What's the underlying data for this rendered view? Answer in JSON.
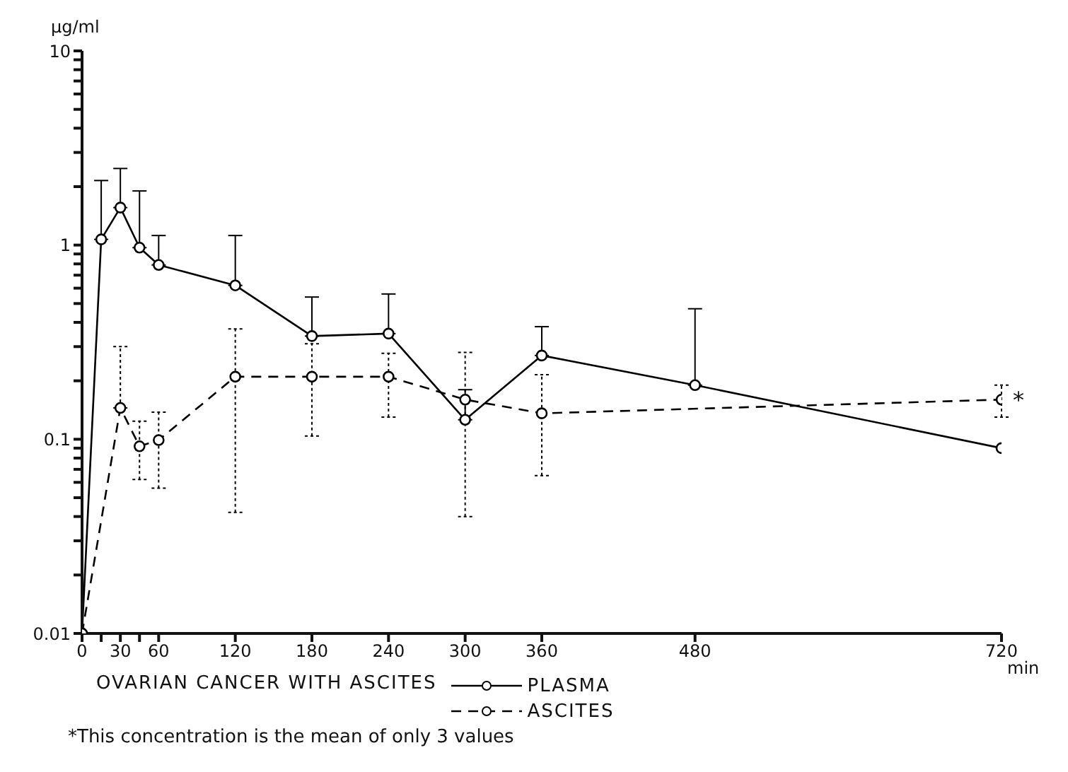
{
  "chart_data": {
    "type": "line",
    "ylabel": "μg/ml",
    "xlabel": "min",
    "legend_title": "OVARIAN CANCER WITH ASCITES",
    "legend": "bottom",
    "log": "y",
    "marker": "circle",
    "grid": false,
    "xlim": [
      0,
      720
    ],
    "xticks": [
      0,
      {
        "value": 15,
        "label": null
      },
      30,
      {
        "value": 45,
        "label": null
      },
      60,
      120,
      180,
      240,
      300,
      360,
      480,
      720
    ],
    "ylim": [
      0.01,
      10
    ],
    "yticks": [
      0.01,
      {
        "value": 0.02,
        "label": null
      },
      {
        "value": 0.03,
        "label": null
      },
      {
        "value": 0.04,
        "label": null
      },
      {
        "value": 0.05,
        "label": null
      },
      {
        "value": 0.06,
        "label": null
      },
      {
        "value": 0.07,
        "label": null
      },
      {
        "value": 0.08,
        "label": null
      },
      {
        "value": 0.09,
        "label": null
      },
      0.1,
      {
        "value": 0.2,
        "label": null
      },
      {
        "value": 0.3,
        "label": null
      },
      {
        "value": 0.4,
        "label": null
      },
      {
        "value": 0.5,
        "label": null
      },
      {
        "value": 0.6,
        "label": null
      },
      {
        "value": 0.7,
        "label": null
      },
      {
        "value": 0.8,
        "label": null
      },
      {
        "value": 0.9,
        "label": null
      },
      1,
      {
        "value": 2,
        "label": null
      },
      {
        "value": 3,
        "label": null
      },
      {
        "value": 4,
        "label": null
      },
      {
        "value": 5,
        "label": null
      },
      {
        "value": 6,
        "label": null
      },
      {
        "value": 7,
        "label": null
      },
      {
        "value": 8,
        "label": null
      },
      {
        "value": 9,
        "label": null
      },
      10
    ],
    "series": [
      {
        "name": "PLASMA",
        "color": "#000000",
        "line_style": "solid",
        "x": [
          0,
          15,
          30,
          45,
          60,
          120,
          180,
          240,
          300,
          360,
          480,
          720
        ],
        "values": [
          0.01,
          1.07,
          1.56,
          0.97,
          0.79,
          0.62,
          0.34,
          0.35,
          0.126,
          0.27,
          0.19,
          0.09
        ],
        "errors": [
          null,
          [
            1.07,
            2.15
          ],
          [
            1.56,
            2.48
          ],
          [
            0.97,
            1.9
          ],
          [
            0.79,
            1.12
          ],
          [
            0.62,
            1.12
          ],
          [
            0.34,
            0.54
          ],
          [
            0.35,
            0.56
          ],
          [
            0.126,
            0.18
          ],
          [
            0.27,
            0.38
          ],
          [
            0.19,
            0.47
          ],
          null
        ]
      },
      {
        "name": "ASCITES",
        "color": "#000000",
        "line_style": "dashed",
        "x": [
          0,
          30,
          45,
          60,
          120,
          180,
          240,
          300,
          360,
          720
        ],
        "values": [
          0.01,
          0.145,
          0.092,
          0.099,
          0.21,
          0.21,
          0.21,
          0.16,
          0.136,
          0.16
        ],
        "errors": [
          null,
          [
            0.145,
            0.3
          ],
          [
            0.062,
            0.124
          ],
          [
            0.056,
            0.138
          ],
          [
            0.042,
            0.37
          ],
          [
            0.104,
            0.31
          ],
          [
            0.13,
            0.277
          ],
          [
            0.04,
            0.28
          ],
          [
            0.065,
            0.215
          ],
          [
            0.13,
            0.19
          ]
        ]
      }
    ],
    "annotations": [
      {
        "text": "*",
        "x": 720,
        "y": 0.16
      },
      "*This concentration is the mean of only 3 values"
    ]
  }
}
